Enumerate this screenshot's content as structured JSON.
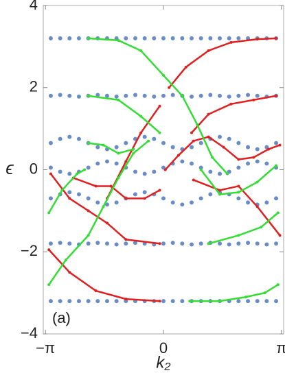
{
  "chart_data": {
    "type": "scatter",
    "xlabel": "k₂",
    "ylabel": "ϵ",
    "annotation": "(a)",
    "xlim": [
      -3.2,
      3.2
    ],
    "ylim": [
      -4,
      4
    ],
    "xticks": [
      {
        "value": -3.14159,
        "label": "−π"
      },
      0,
      {
        "value": 3.14159,
        "label": "π"
      }
    ],
    "yticks": [
      {
        "value": -4,
        "label": "−4"
      },
      {
        "value": -2,
        "label": "−2"
      },
      0,
      2,
      4
    ],
    "series": [
      {
        "color": "#6a8cc6",
        "x": [
          -3,
          -2.75,
          -2.5,
          -2.25,
          -2,
          -1.75,
          -1.5,
          -1.25,
          -1,
          -0.75,
          -0.5,
          -0.25,
          0,
          0.25,
          0.5,
          0.75,
          1,
          1.25,
          1.5,
          1.75,
          2,
          2.25,
          2.5,
          2.75,
          3
        ],
        "values": [
          3.2,
          3.2,
          3.2,
          3.2,
          3.2,
          3.2,
          3.2,
          3.2,
          3.2,
          3.2,
          3.2,
          3.2,
          3.2,
          3.2,
          3.2,
          3.2,
          3.2,
          3.2,
          3.2,
          3.2,
          3.2,
          3.2,
          3.2,
          3.2,
          3.2
        ]
      },
      {
        "color": "#6a8cc6",
        "x": [
          -3,
          -2.75,
          -2.5,
          -2.25,
          -2,
          -1.75,
          -1.5,
          -1.25,
          -1,
          -0.75,
          -0.5,
          -0.25,
          0,
          0.25,
          0.5,
          0.75,
          1,
          1.25,
          1.5,
          1.75,
          2,
          2.25,
          2.5,
          2.75,
          3
        ],
        "values": [
          1.8,
          1.82,
          1.8,
          1.78,
          1.8,
          1.82,
          1.8,
          1.78,
          1.8,
          1.82,
          1.8,
          1.78,
          1.8,
          1.82,
          1.8,
          1.78,
          1.8,
          1.82,
          1.8,
          1.78,
          1.8,
          1.82,
          1.8,
          1.78,
          1.8
        ]
      },
      {
        "color": "#6a8cc6",
        "x": [
          -3,
          -2.75,
          -2.5,
          -2.25,
          -2,
          -1.75,
          -1.5,
          -1.25,
          -1,
          -0.75,
          -0.5,
          -0.25,
          0,
          0.25,
          0.5,
          0.75,
          1,
          1.25,
          1.5,
          1.75,
          2,
          2.25,
          2.5,
          2.75,
          3
        ],
        "values": [
          0.65,
          0.75,
          0.8,
          0.75,
          0.65,
          0.55,
          0.5,
          0.55,
          0.65,
          0.75,
          0.8,
          0.75,
          0.65,
          0.55,
          0.5,
          0.55,
          0.65,
          0.75,
          0.8,
          0.75,
          0.65,
          0.55,
          0.5,
          0.55,
          0.65
        ]
      },
      {
        "color": "#6a8cc6",
        "x": [
          -3,
          -2.75,
          -2.5,
          -2.25,
          -2,
          -1.75,
          -1.5,
          -1.25,
          -1,
          -0.75,
          -0.5,
          -0.25,
          0,
          0.25,
          0.5,
          0.75,
          1,
          1.25,
          1.5,
          1.75,
          2,
          2.25,
          2.5,
          2.75,
          3
        ],
        "values": [
          0.05,
          -0.05,
          -0.1,
          -0.05,
          0.05,
          0.15,
          0.2,
          0.15,
          0.05,
          -0.05,
          -0.1,
          -0.05,
          0.05,
          0.15,
          0.2,
          0.15,
          0.05,
          -0.05,
          -0.1,
          -0.05,
          0.05,
          0.15,
          0.2,
          0.15,
          0.05
        ]
      },
      {
        "color": "#6a8cc6",
        "x": [
          -3,
          -2.75,
          -2.5,
          -2.25,
          -2,
          -1.75,
          -1.5,
          -1.25,
          -1,
          -0.75,
          -0.5,
          -0.25,
          0,
          0.25,
          0.5,
          0.75,
          1,
          1.25,
          1.5,
          1.75,
          2,
          2.25,
          2.5,
          2.75,
          3
        ],
        "values": [
          -0.7,
          -0.6,
          -0.55,
          -0.6,
          -0.7,
          -0.8,
          -0.85,
          -0.8,
          -0.7,
          -0.6,
          -0.55,
          -0.6,
          -0.7,
          -0.8,
          -0.85,
          -0.8,
          -0.7,
          -0.6,
          -0.55,
          -0.6,
          -0.7,
          -0.8,
          -0.85,
          -0.8,
          -0.7
        ]
      },
      {
        "color": "#6a8cc6",
        "x": [
          -3,
          -2.75,
          -2.5,
          -2.25,
          -2,
          -1.75,
          -1.5,
          -1.25,
          -1,
          -0.75,
          -0.5,
          -0.25,
          0,
          0.25,
          0.5,
          0.75,
          1,
          1.25,
          1.5,
          1.75,
          2,
          2.25,
          2.5,
          2.75,
          3
        ],
        "values": [
          -1.8,
          -1.78,
          -1.8,
          -1.82,
          -1.8,
          -1.78,
          -1.8,
          -1.82,
          -1.8,
          -1.78,
          -1.8,
          -1.82,
          -1.8,
          -1.78,
          -1.8,
          -1.82,
          -1.8,
          -1.78,
          -1.8,
          -1.82,
          -1.8,
          -1.78,
          -1.8,
          -1.82,
          -1.8
        ]
      },
      {
        "color": "#6a8cc6",
        "x": [
          -3,
          -2.75,
          -2.5,
          -2.25,
          -2,
          -1.75,
          -1.5,
          -1.25,
          -1,
          -0.75,
          -0.5,
          -0.25,
          0,
          0.25,
          0.5,
          0.75,
          1,
          1.25,
          1.5,
          1.75,
          2,
          2.25,
          2.5,
          2.75,
          3
        ],
        "values": [
          -3.2,
          -3.2,
          -3.2,
          -3.2,
          -3.2,
          -3.2,
          -3.2,
          -3.2,
          -3.2,
          -3.2,
          -3.2,
          -3.2,
          -3.2,
          -3.2,
          -3.2,
          -3.2,
          -3.2,
          -3.2,
          -3.2,
          -3.2,
          -3.2,
          -3.2,
          -3.2,
          -3.2,
          -3.2
        ]
      },
      {
        "color": "#e02020",
        "line": true,
        "x": [
          0.15,
          0.6,
          1.2,
          1.8,
          2.5,
          3.0
        ],
        "values": [
          2.0,
          2.5,
          2.9,
          3.1,
          3.18,
          3.2
        ]
      },
      {
        "color": "#e02020",
        "line": true,
        "x": [
          0.75,
          1.2,
          1.8,
          2.4,
          3.0
        ],
        "values": [
          0.9,
          1.35,
          1.6,
          1.7,
          1.8
        ]
      },
      {
        "color": "#e02020",
        "line": true,
        "x": [
          0.05,
          0.4,
          0.8,
          1.2,
          1.6,
          2.0,
          2.4,
          2.8,
          3.1
        ],
        "values": [
          0.0,
          0.35,
          0.7,
          0.8,
          0.55,
          0.25,
          0.3,
          0.5,
          0.6
        ]
      },
      {
        "color": "#e02020",
        "line": true,
        "x": [
          0.8,
          1.5,
          2.0,
          2.5,
          3.1
        ],
        "values": [
          -0.25,
          -0.5,
          -0.4,
          -0.9,
          -1.6
        ]
      },
      {
        "color": "#e02020",
        "line": true,
        "x": [
          -3.05,
          -2.5,
          -1.8,
          -1.0,
          -0.1
        ],
        "values": [
          -1.95,
          -2.5,
          -2.95,
          -3.15,
          -3.2
        ]
      },
      {
        "color": "#e02020",
        "line": true,
        "x": [
          -3.0,
          -2.5,
          -2.0,
          -1.5,
          -1.0,
          -0.1
        ],
        "values": [
          -0.1,
          -0.7,
          -1.0,
          -1.3,
          -1.7,
          -1.8
        ]
      },
      {
        "color": "#e02020",
        "line": true,
        "x": [
          -2.4,
          -1.8,
          -1.4,
          -1.0,
          -0.5,
          -0.1
        ],
        "values": [
          -0.2,
          -0.4,
          -0.4,
          -0.7,
          -0.7,
          -0.5
        ]
      },
      {
        "color": "#e02020",
        "line": true,
        "x": [
          -1.5,
          -1.0,
          -0.6,
          -0.1
        ],
        "values": [
          -0.7,
          0.2,
          0.9,
          1.55
        ]
      },
      {
        "color": "#33dd33",
        "line": true,
        "x": [
          -2.0,
          -1.2,
          -0.6,
          0,
          0.5,
          0.9,
          1.3,
          1.7
        ],
        "values": [
          3.2,
          3.15,
          2.9,
          2.3,
          1.8,
          1.1,
          0.3,
          -0.1
        ]
      },
      {
        "color": "#33dd33",
        "line": true,
        "x": [
          -2.0,
          -1.2,
          -0.6,
          -0.1
        ],
        "values": [
          1.8,
          1.7,
          1.3,
          0.9
        ]
      },
      {
        "color": "#33dd33",
        "line": true,
        "x": [
          -3.05,
          -2.7,
          -2.3,
          -2.1
        ],
        "values": [
          -1.05,
          -0.5,
          -0.1,
          0.0
        ]
      },
      {
        "color": "#33dd33",
        "line": true,
        "x": [
          -3.05,
          -2.6,
          -2.0,
          -1.6,
          -1.2,
          -0.8,
          -0.4
        ],
        "values": [
          -2.8,
          -2.2,
          -1.6,
          -0.9,
          -0.2,
          0.4,
          0.7
        ]
      },
      {
        "color": "#33dd33",
        "line": true,
        "x": [
          -2.0,
          -1.6,
          -1.2,
          -0.8
        ],
        "values": [
          0.65,
          0.6,
          0.4,
          0.5
        ]
      },
      {
        "color": "#33dd33",
        "line": true,
        "x": [
          0.7,
          1.5,
          2.2,
          2.7,
          3.05
        ],
        "values": [
          -3.2,
          -3.2,
          -3.1,
          -3.0,
          -2.8
        ]
      },
      {
        "color": "#33dd33",
        "line": true,
        "x": [
          1.2,
          2.0,
          2.6,
          3.05
        ],
        "values": [
          -1.8,
          -1.6,
          -1.4,
          -1.05
        ]
      },
      {
        "color": "#33dd33",
        "line": true,
        "x": [
          1.0,
          1.5,
          2.0,
          2.5,
          3.0
        ],
        "values": [
          0.0,
          -0.6,
          -0.55,
          -0.3,
          0.1
        ]
      }
    ]
  }
}
